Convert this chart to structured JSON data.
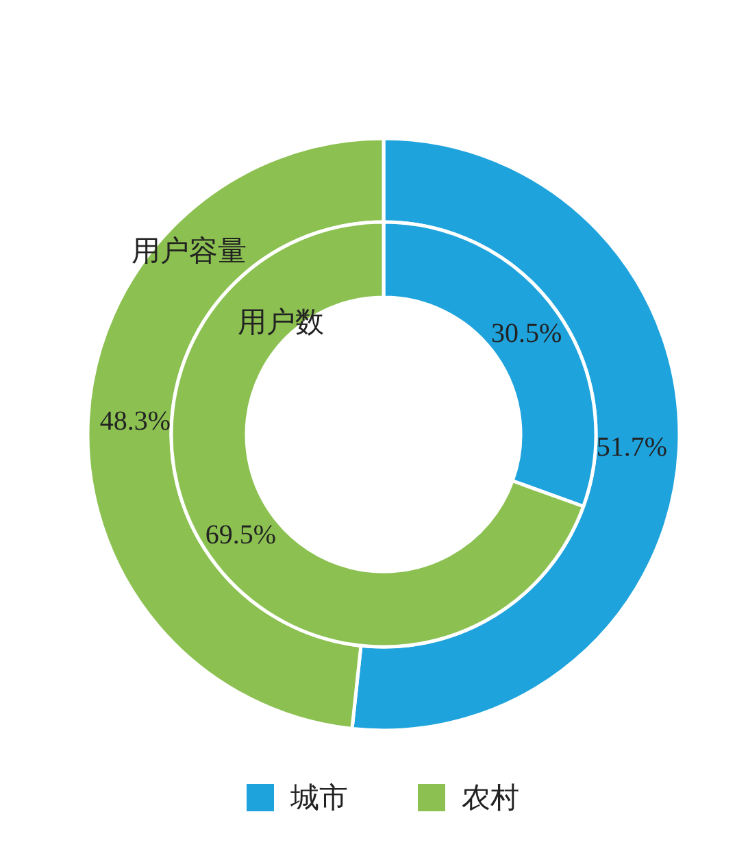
{
  "chart_data": {
    "type": "donut",
    "categories": [
      "城市",
      "农村"
    ],
    "colors": [
      "#1fa3dc",
      "#8cc152"
    ],
    "series": [
      {
        "name": "用户容量",
        "values": [
          51.7,
          48.3
        ],
        "value_labels": [
          "51.7%",
          "48.3%"
        ]
      },
      {
        "name": "用户数",
        "values": [
          30.5,
          69.5
        ],
        "value_labels": [
          "30.5%",
          "69.5%"
        ]
      }
    ],
    "legend": "bottom"
  }
}
